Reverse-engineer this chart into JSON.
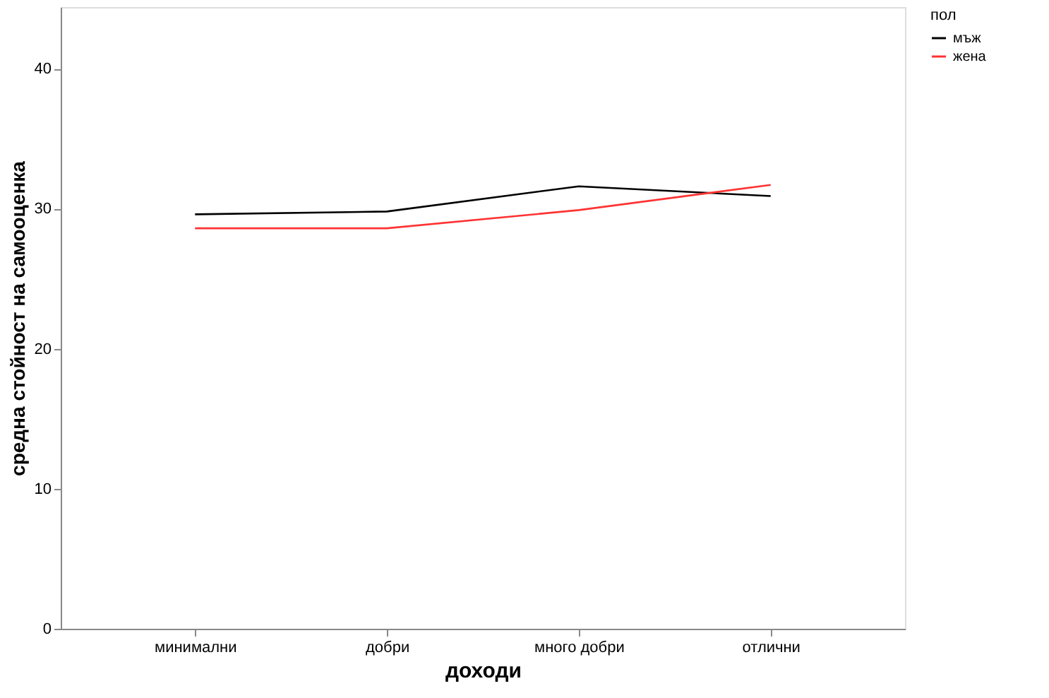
{
  "chart_data": {
    "type": "line",
    "xlabel": "доходи",
    "ylabel": "средна стойност на самооценка",
    "legend_title": "пол",
    "legend": "top right",
    "categories": [
      "минимални",
      "добри",
      "много добри",
      "отлични"
    ],
    "series": [
      {
        "name": "мъж",
        "color": "#000000",
        "values": [
          29.6,
          29.8,
          31.6,
          30.9
        ]
      },
      {
        "name": "жена",
        "color": "#ff3333",
        "values": [
          28.6,
          28.6,
          29.9,
          31.7
        ]
      }
    ],
    "ylim": [
      0,
      44.4
    ],
    "yticks": [
      0,
      10,
      20,
      30,
      40
    ],
    "grid": false,
    "marker": "none",
    "line_style": "solid"
  }
}
